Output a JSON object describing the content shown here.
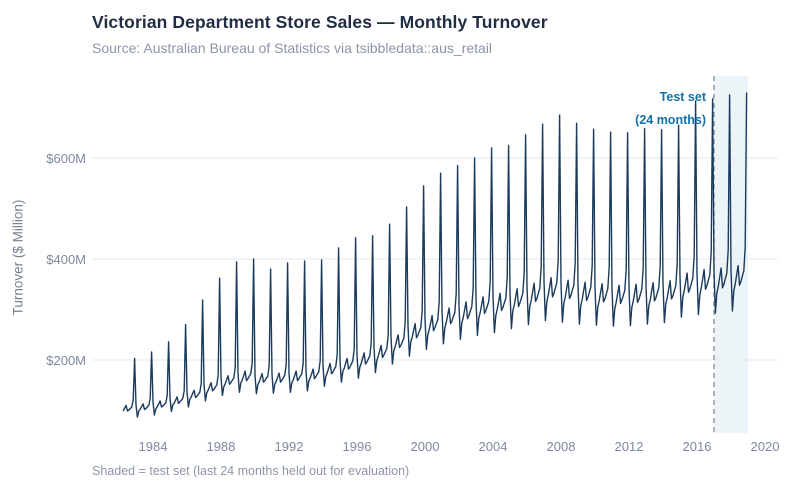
{
  "header": {
    "title": "Victorian Department Store Sales — Monthly Turnover",
    "subtitle": "Source: Australian Bureau of Statistics via tsibbledata::aus_retail"
  },
  "caption": "Shaded = test set (last 24 months held out for evaluation)",
  "annotation": {
    "line1": "Test set",
    "line2": "(24 months)"
  },
  "colors": {
    "title": "#212d42",
    "subtitle": "#8d96a6",
    "tick_labels": "#7e8a9c",
    "axis_title": "#78828f",
    "line": "#1b3a5c",
    "gridline": "#e8eef5",
    "test_shade": "#dce9f2",
    "dashed_cutoff": "#8f9aa8",
    "annotation": "#1272ab",
    "background": "#ffffff"
  },
  "chart_data": {
    "type": "line",
    "title": "Victorian Department Store Sales — Monthly Turnover",
    "xlabel": "",
    "ylabel": "Turnover ($ Million)",
    "x_ticks": [
      1984,
      1988,
      1992,
      1996,
      2000,
      2004,
      2008,
      2012,
      2016,
      2020
    ],
    "x_tick_labels": [
      "1984",
      "1988",
      "1992",
      "1996",
      "2000",
      "2004",
      "2008",
      "2012",
      "2016",
      "2020"
    ],
    "y_ticks": [
      200,
      400,
      600
    ],
    "y_tick_labels": [
      "$200M",
      "$400M",
      "$600M"
    ],
    "xlim": [
      1980.4,
      2020.8
    ],
    "ylim": [
      60,
      765
    ],
    "grid": "horizontal-only",
    "legend": "none",
    "frequency": "monthly",
    "start": "1982-04",
    "end": "2018-12",
    "test_set": {
      "label": "Test set (24 months)",
      "start": "2017-01",
      "end": "2018-12",
      "start_year": 2017,
      "end_year": 2019,
      "months": 24
    },
    "series": [
      {
        "name": "Monthly turnover ($M)",
        "values": [
          100,
          105,
          110,
          99,
          101,
          104,
          107,
          121,
          203,
          111,
          87,
          99,
          103,
          108,
          113,
          102,
          104,
          107,
          110,
          124,
          216,
          117,
          91,
          103,
          108,
          113,
          119,
          107,
          109,
          112,
          115,
          130,
          236,
          125,
          98,
          111,
          115,
          121,
          127,
          114,
          117,
          120,
          124,
          139,
          270,
          138,
          107,
          122,
          127,
          134,
          140,
          126,
          128,
          132,
          136,
          153,
          319,
          152,
          119,
          135,
          141,
          148,
          155,
          139,
          142,
          146,
          151,
          170,
          362,
          166,
          130,
          147,
          153,
          161,
          169,
          152,
          155,
          160,
          164,
          185,
          394,
          174,
          136,
          154,
          161,
          169,
          178,
          159,
          163,
          168,
          173,
          194,
          400,
          170,
          133,
          151,
          157,
          165,
          173,
          156,
          159,
          164,
          168,
          190,
          380,
          171,
          134,
          152,
          158,
          166,
          174,
          156,
          160,
          165,
          170,
          191,
          392,
          174,
          136,
          154,
          161,
          169,
          178,
          159,
          163,
          168,
          173,
          194,
          396,
          179,
          139,
          158,
          165,
          173,
          182,
          163,
          167,
          172,
          177,
          199,
          398,
          189,
          148,
          167,
          175,
          184,
          193,
          173,
          176,
          182,
          187,
          211,
          422,
          200,
          156,
          177,
          184,
          194,
          203,
          182,
          186,
          192,
          198,
          222,
          442,
          210,
          164,
          186,
          194,
          204,
          214,
          192,
          196,
          202,
          208,
          234,
          446,
          225,
          175,
          199,
          208,
          218,
          229,
          205,
          210,
          216,
          223,
          250,
          469,
          246,
          192,
          218,
          227,
          239,
          250,
          225,
          229,
          236,
          243,
          274,
          503,
          267,
          208,
          236,
          246,
          259,
          272,
          244,
          249,
          257,
          264,
          297,
          545,
          282,
          221,
          250,
          261,
          274,
          288,
          258,
          264,
          272,
          280,
          315,
          570,
          297,
          232,
          263,
          275,
          289,
          303,
          272,
          277,
          286,
          294,
          331,
          585,
          309,
          241,
          273,
          285,
          300,
          315,
          282,
          288,
          297,
          306,
          344,
          600,
          319,
          249,
          283,
          295,
          310,
          325,
          292,
          298,
          307,
          316,
          356,
          620,
          326,
          254,
          288,
          301,
          316,
          332,
          298,
          304,
          313,
          322,
          363,
          625,
          335,
          262,
          297,
          309,
          325,
          341,
          306,
          313,
          322,
          332,
          373,
          646,
          345,
          270,
          306,
          319,
          336,
          352,
          316,
          322,
          332,
          342,
          385,
          667,
          356,
          278,
          315,
          329,
          346,
          363,
          325,
          332,
          342,
          353,
          397,
          685,
          352,
          275,
          312,
          325,
          342,
          358,
          322,
          328,
          338,
          348,
          392,
          669,
          348,
          271,
          308,
          321,
          338,
          354,
          318,
          324,
          334,
          344,
          387,
          657,
          344,
          269,
          305,
          318,
          335,
          351,
          315,
          321,
          331,
          341,
          384,
          651,
          341,
          267,
          302,
          315,
          332,
          348,
          312,
          319,
          328,
          338,
          380,
          650,
          343,
          268,
          304,
          317,
          334,
          350,
          314,
          320,
          330,
          340,
          383,
          658,
          347,
          271,
          307,
          320,
          337,
          353,
          317,
          323,
          333,
          343,
          386,
          656,
          351,
          274,
          311,
          324,
          341,
          357,
          321,
          327,
          337,
          347,
          391,
          665,
          365,
          285,
          324,
          338,
          355,
          372,
          334,
          341,
          351,
          362,
          407,
          713,
          372,
          290,
          329,
          343,
          361,
          379,
          340,
          347,
          358,
          368,
          414,
          717,
          375,
          293,
          332,
          346,
          364,
          382,
          343,
          350,
          361,
          371,
          418,
          725,
          380,
          297,
          337,
          351,
          369,
          387,
          348,
          355,
          366,
          376,
          424,
          729
        ]
      }
    ]
  }
}
